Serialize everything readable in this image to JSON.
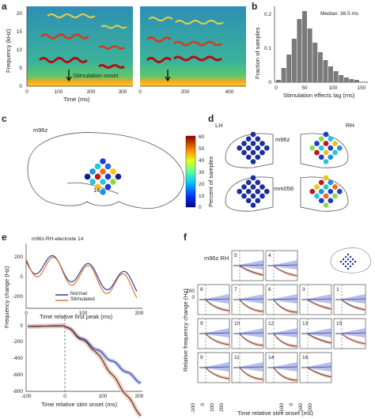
{
  "panels": {
    "a": {
      "label": "a",
      "ylabel": "Frequency (kHz)",
      "xlabel": "Time (ms)",
      "left_yticks": [
        "0",
        "5",
        "10",
        "15",
        "20"
      ],
      "left_xticks": [
        "0",
        "100",
        "200",
        "300"
      ],
      "right_xticks": [
        "0",
        "200",
        "400"
      ],
      "annotation": "Stimulation onset"
    },
    "b": {
      "label": "b",
      "ylabel": "Fraction of samples",
      "xlabel": "Stimulation effects lag (ms)",
      "median_text": "Median: 38.5 ms",
      "yticks": [
        "0",
        "0.1",
        "0.2"
      ],
      "xticks": [
        "0",
        "50",
        "100",
        "150"
      ]
    },
    "c": {
      "label": "c",
      "subject": "m96z",
      "electrode": "14",
      "colorbar_label": "Percent of samples",
      "colorbar_ticks": [
        "60",
        "50",
        "40",
        "30",
        "20",
        "10",
        "0"
      ]
    },
    "d": {
      "label": "d",
      "lh": "LH",
      "rh": "RH",
      "subject1": "m96z",
      "subject2": "mm058"
    },
    "e": {
      "label": "e",
      "title": "m96z-RH-electrode 14",
      "ylabel": "Frequency change (Hz)",
      "xlabel_top": "Time relative first peak (ms)",
      "xlabel_bottom": "Time relative stim onset (ms)",
      "legend_normal": "Normal",
      "legend_stim": "Stimulated",
      "top_yticks": [
        "200",
        "0",
        "-200"
      ],
      "top_xticks": [
        "0",
        "100",
        "200"
      ],
      "bottom_yticks": [
        "0",
        "-200",
        "-400",
        "-600",
        "-800"
      ],
      "bottom_xticks": [
        "-100",
        "0",
        "100",
        "200"
      ]
    },
    "f": {
      "label": "f",
      "subject": "m96z RH",
      "ylabel": "Relative frequency change (Hz)",
      "xlabel": "Time relative stim onset (ms)",
      "xticks": [
        "-100",
        "0",
        "100",
        "200"
      ],
      "cells": [
        {
          "id": "5"
        },
        {
          "id": "4"
        },
        {
          "id": "8"
        },
        {
          "id": "7"
        },
        {
          "id": "6"
        },
        {
          "id": "3"
        },
        {
          "id": "1"
        },
        {
          "id": "9"
        },
        {
          "id": "10"
        },
        {
          "id": "12"
        },
        {
          "id": "13"
        },
        {
          "id": "15"
        },
        {
          "id": "9"
        },
        {
          "id": "11"
        },
        {
          "id": "14"
        },
        {
          "id": "16"
        }
      ],
      "ytick_top": "200",
      "ytick_zero": "0"
    }
  },
  "colors": {
    "normal": "#2b3ea8",
    "stimulated": "#e8742c",
    "normal_band": "#9aa3dc",
    "stim_band": "#f3b7a2",
    "electrode_high": "#1c2f9c"
  }
}
